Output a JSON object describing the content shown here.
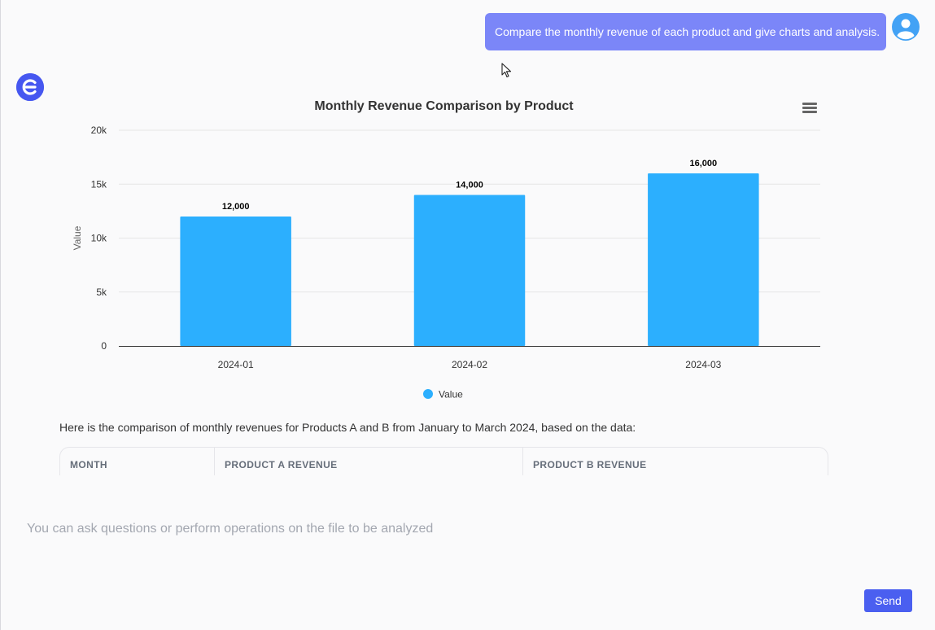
{
  "user_message": "Compare the monthly revenue of each product and give charts and analysis.",
  "chart_data": {
    "type": "bar",
    "title": "Monthly Revenue Comparison by Product",
    "categories": [
      "2024-01",
      "2024-02",
      "2024-03"
    ],
    "series": [
      {
        "name": "Value",
        "values": [
          12000,
          14000,
          16000
        ]
      }
    ],
    "data_labels": [
      "12,000",
      "14,000",
      "16,000"
    ],
    "ylabel": "Value",
    "xlabel": "",
    "ylim": [
      0,
      20000
    ],
    "yticks": [
      0,
      5000,
      10000,
      15000,
      20000
    ],
    "ytick_labels": [
      "0",
      "5k",
      "10k",
      "15k",
      "20k"
    ],
    "legend": [
      "Value"
    ],
    "legend_position": "bottom-center",
    "bar_color": "#2caffe",
    "grid": true
  },
  "analysis": {
    "intro": "Here is the comparison of monthly revenues for Products A and B from January to March 2024, based on the data:"
  },
  "table": {
    "headers": [
      "MONTH",
      "PRODUCT A REVENUE",
      "PRODUCT B REVENUE"
    ]
  },
  "input": {
    "placeholder": "You can ask questions or perform operations on the file to be analyzed",
    "value": ""
  },
  "send_label": "Send",
  "colors": {
    "user_bubble": "#7b86f8",
    "accent": "#4a5ff0",
    "bar": "#2caffe"
  },
  "icons": {
    "user_avatar": "user-icon",
    "bot_avatar": "bot-logo-icon",
    "chart_menu": "menu-icon",
    "cursor": "cursor-icon"
  }
}
